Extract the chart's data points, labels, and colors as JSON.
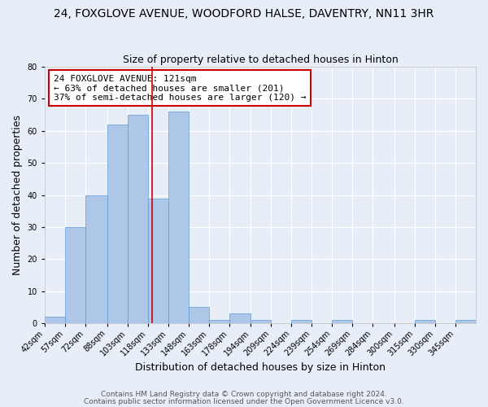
{
  "title": "24, FOXGLOVE AVENUE, WOODFORD HALSE, DAVENTRY, NN11 3HR",
  "subtitle": "Size of property relative to detached houses in Hinton",
  "xlabel": "Distribution of detached houses by size in Hinton",
  "ylabel": "Number of detached properties",
  "bin_labels": [
    "42sqm",
    "57sqm",
    "72sqm",
    "88sqm",
    "103sqm",
    "118sqm",
    "133sqm",
    "148sqm",
    "163sqm",
    "178sqm",
    "194sqm",
    "209sqm",
    "224sqm",
    "239sqm",
    "254sqm",
    "269sqm",
    "284sqm",
    "300sqm",
    "315sqm",
    "330sqm",
    "345sqm"
  ],
  "bin_edges": [
    42,
    57,
    72,
    88,
    103,
    118,
    133,
    148,
    163,
    178,
    194,
    209,
    224,
    239,
    254,
    269,
    284,
    300,
    315,
    330,
    345,
    360
  ],
  "bar_heights": [
    2,
    30,
    40,
    62,
    65,
    39,
    66,
    5,
    1,
    3,
    1,
    0,
    1,
    0,
    1,
    0,
    0,
    0,
    1,
    0,
    1
  ],
  "bar_color": "#aec6e8",
  "bar_edgecolor": "#5b9bd5",
  "vline_x": 121,
  "vline_color": "#cc0000",
  "annotation_line1": "24 FOXGLOVE AVENUE: 121sqm",
  "annotation_line2": "← 63% of detached houses are smaller (201)",
  "annotation_line3": "37% of semi-detached houses are larger (120) →",
  "annotation_box_facecolor": "#ffffff",
  "annotation_box_edgecolor": "#cc0000",
  "ylim": [
    0,
    80
  ],
  "yticks": [
    0,
    10,
    20,
    30,
    40,
    50,
    60,
    70,
    80
  ],
  "footer_line1": "Contains HM Land Registry data © Crown copyright and database right 2024.",
  "footer_line2": "Contains public sector information licensed under the Open Government Licence v3.0.",
  "background_color": "#e8eef7",
  "plot_background_color": "#e8eef7",
  "title_fontsize": 10,
  "subtitle_fontsize": 9,
  "axis_label_fontsize": 9,
  "annotation_fontsize": 8,
  "tick_fontsize": 7,
  "footer_fontsize": 6.5
}
